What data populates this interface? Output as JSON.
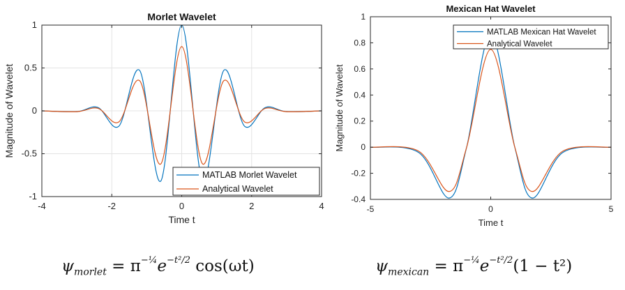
{
  "chart_data": [
    {
      "type": "line",
      "title": "Morlet Wavelet",
      "xlabel": "Time t",
      "ylabel": "Magnitude of Wavelet",
      "xlim": [
        -4,
        4
      ],
      "ylim": [
        -1,
        1
      ],
      "xticks": [
        -4,
        -2,
        0,
        2,
        4
      ],
      "yticks": [
        -1,
        -0.5,
        0,
        0.5,
        1
      ],
      "xtick_labels": [
        "-4",
        "-2",
        "0",
        "2",
        "4"
      ],
      "ytick_labels": [
        "-1",
        "-0.5",
        "0",
        "0.5",
        "1"
      ],
      "grid": true,
      "legend_position": "bottom-right",
      "x": [
        -4.0,
        -3.0,
        -2.4,
        -1.8,
        -1.2,
        -0.6,
        0.0,
        0.6,
        1.2,
        1.8,
        2.4,
        3.0,
        4.0
      ],
      "series": [
        {
          "name": "MATLAB Morlet Wavelet",
          "color": "#0072BD",
          "values": [
            0.0,
            -0.01,
            0.04,
            -0.18,
            0.47,
            -0.82,
            1.0,
            -0.82,
            0.47,
            -0.18,
            0.04,
            -0.01,
            0.0
          ]
        },
        {
          "name": "Analytical Wavelet",
          "color": "#D95319",
          "values": [
            0.0,
            -0.01,
            0.03,
            -0.13,
            0.35,
            -0.62,
            0.75,
            -0.62,
            0.35,
            -0.13,
            0.03,
            -0.01,
            0.0
          ]
        }
      ]
    },
    {
      "type": "line",
      "title": "Mexican Hat Wavelet",
      "xlabel": "Time t",
      "ylabel": "Magnitude of Wavelet",
      "xlim": [
        -5,
        5
      ],
      "ylim": [
        -0.4,
        1
      ],
      "xticks": [
        -5,
        0,
        5
      ],
      "yticks": [
        -0.4,
        -0.2,
        0,
        0.2,
        0.4,
        0.6,
        0.8,
        1
      ],
      "xtick_labels": [
        "-5",
        "0",
        "5"
      ],
      "ytick_labels": [
        "-0.4",
        "-0.2",
        "0",
        "0.2",
        "0.4",
        "0.6",
        "0.8",
        "1"
      ],
      "grid": false,
      "legend_position": "top-right",
      "x": [
        -5.0,
        -3.0,
        -1.73,
        -1.0,
        0.0,
        1.0,
        1.73,
        3.0,
        5.0
      ],
      "series": [
        {
          "name": "MATLAB Mexican Hat Wavelet",
          "color": "#0072BD",
          "values": [
            0.0,
            -0.04,
            -0.39,
            0.0,
            0.87,
            0.0,
            -0.39,
            -0.04,
            0.0
          ]
        },
        {
          "name": "Analytical Wavelet",
          "color": "#D95319",
          "values": [
            0.0,
            -0.03,
            -0.34,
            0.0,
            0.75,
            0.0,
            -0.34,
            -0.03,
            0.0
          ]
        }
      ]
    }
  ],
  "formulas": {
    "morlet_lhs": "ψ",
    "morlet_sub": "morlet",
    "morlet_rhs": "= π",
    "morlet_exp1": "−¼",
    "morlet_e": "e",
    "morlet_exp2": "−t²/2",
    "morlet_tail": " cos(ωt)",
    "mexican_lhs": "ψ",
    "mexican_sub": "mexican",
    "mexican_rhs": "= π",
    "mexican_exp1": "−¼",
    "mexican_e": "e",
    "mexican_exp2": "−t²/2",
    "mexican_tail": "(1 − t²)"
  }
}
